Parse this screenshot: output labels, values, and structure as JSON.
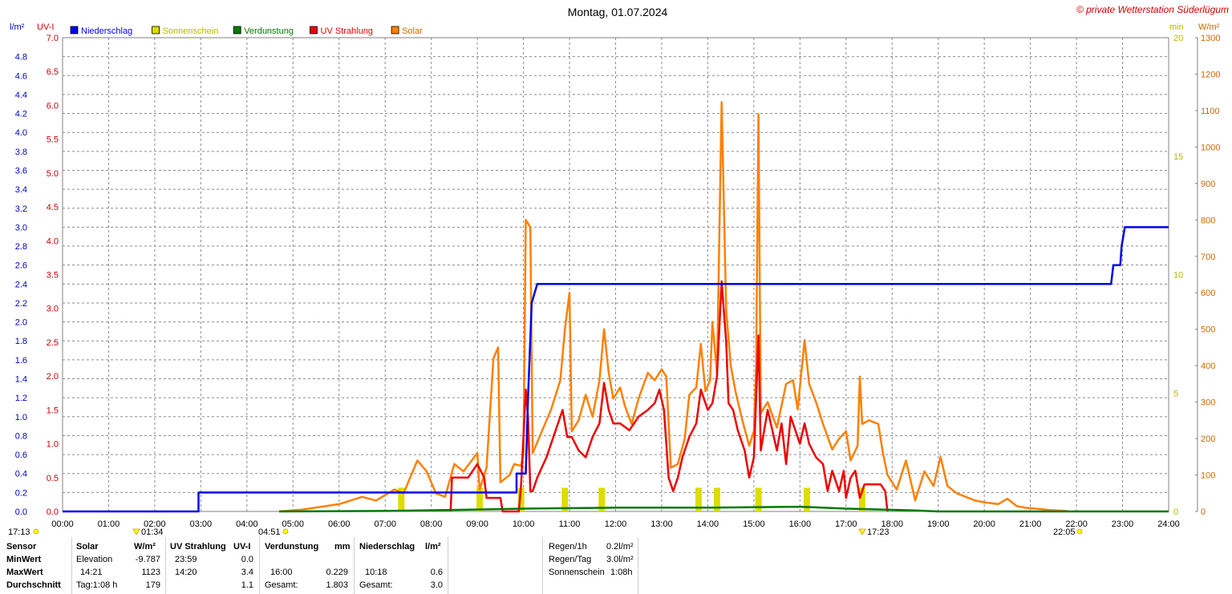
{
  "header": {
    "title": "Montag, 01.07.2024",
    "copyright": "© private Wetterstation Süderlügum",
    "unit_rain": "l/m²",
    "unit_uv": "UV-I",
    "unit_min": "min",
    "unit_wm2": "W/m²"
  },
  "legend": [
    {
      "name": "Niederschlag",
      "color": "#0000ee"
    },
    {
      "name": "Sonnenschein",
      "color": "#dddd00"
    },
    {
      "name": "Verdunstung",
      "color": "#007a00"
    },
    {
      "name": "UV Strahlung",
      "color": "#ee0000"
    },
    {
      "name": "Solar",
      "color": "#ff8000"
    }
  ],
  "chart_data": {
    "type": "line",
    "title": "Montag, 01.07.2024",
    "x_ticks": [
      "00:00",
      "01:00",
      "02:00",
      "03:00",
      "04:00",
      "05:00",
      "06:00",
      "07:00",
      "08:00",
      "09:00",
      "10:00",
      "11:00",
      "12:00",
      "13:00",
      "14:00",
      "15:00",
      "16:00",
      "17:00",
      "18:00",
      "19:00",
      "20:00",
      "21:00",
      "22:00",
      "23:00",
      "24:00"
    ],
    "xlim_hours": [
      0,
      24
    ],
    "axes": {
      "rain": {
        "unit": "l/m²",
        "range": [
          0,
          5.0
        ],
        "ticks": [
          "0.0",
          "0.2",
          "0.4",
          "0.6",
          "0.8",
          "1.0",
          "1.2",
          "1.4",
          "1.6",
          "1.8",
          "2.0",
          "2.2",
          "2.4",
          "2.6",
          "2.8",
          "3.0",
          "3.2",
          "3.4",
          "3.6",
          "3.8",
          "4.0",
          "4.2",
          "4.4",
          "4.6",
          "4.8"
        ]
      },
      "uv": {
        "unit": "UV-I",
        "range": [
          0,
          7.0
        ],
        "ticks": [
          "0.0",
          "0.5",
          "1.0",
          "1.5",
          "2.0",
          "2.5",
          "3.0",
          "3.5",
          "4.0",
          "4.5",
          "5.0",
          "5.5",
          "6.0",
          "6.5",
          "7.0"
        ]
      },
      "sunshine": {
        "unit": "min",
        "range": [
          0,
          20
        ],
        "ticks": [
          "0",
          "5",
          "10",
          "15",
          "20"
        ]
      },
      "solar": {
        "unit": "W/m²",
        "range": [
          0,
          1300
        ],
        "ticks": [
          "0",
          "100",
          "200",
          "300",
          "400",
          "500",
          "600",
          "700",
          "800",
          "900",
          "1000",
          "1100",
          "1200",
          "1300"
        ]
      }
    },
    "grid": true,
    "series": [
      {
        "name": "Niederschlag",
        "axis": "rain",
        "step": true,
        "points": [
          [
            0,
            0
          ],
          [
            2.95,
            0
          ],
          [
            2.95,
            0.2
          ],
          [
            9.85,
            0.2
          ],
          [
            9.85,
            0.4
          ],
          [
            10.05,
            0.4
          ],
          [
            10.1,
            1.2
          ],
          [
            10.18,
            2.2
          ],
          [
            10.3,
            2.4
          ],
          [
            22.75,
            2.4
          ],
          [
            22.8,
            2.6
          ],
          [
            22.95,
            2.6
          ],
          [
            22.98,
            2.8
          ],
          [
            23.05,
            3.0
          ],
          [
            24,
            3.0
          ]
        ]
      },
      {
        "name": "Solar",
        "axis": "solar",
        "points": [
          [
            4.7,
            0
          ],
          [
            5.2,
            5
          ],
          [
            6.0,
            20
          ],
          [
            6.5,
            40
          ],
          [
            6.8,
            30
          ],
          [
            7.2,
            60
          ],
          [
            7.4,
            50
          ],
          [
            7.7,
            140
          ],
          [
            7.9,
            110
          ],
          [
            8.1,
            50
          ],
          [
            8.3,
            40
          ],
          [
            8.5,
            130
          ],
          [
            8.7,
            110
          ],
          [
            9.0,
            160
          ],
          [
            9.05,
            60
          ],
          [
            9.2,
            120
          ],
          [
            9.35,
            420
          ],
          [
            9.45,
            450
          ],
          [
            9.5,
            80
          ],
          [
            9.7,
            100
          ],
          [
            9.8,
            130
          ],
          [
            9.95,
            125
          ],
          [
            10.0,
            160
          ],
          [
            10.05,
            800
          ],
          [
            10.15,
            780
          ],
          [
            10.2,
            160
          ],
          [
            10.4,
            220
          ],
          [
            10.6,
            280
          ],
          [
            10.8,
            360
          ],
          [
            10.9,
            500
          ],
          [
            11.0,
            600
          ],
          [
            11.05,
            220
          ],
          [
            11.2,
            250
          ],
          [
            11.35,
            320
          ],
          [
            11.5,
            260
          ],
          [
            11.65,
            360
          ],
          [
            11.75,
            500
          ],
          [
            11.85,
            380
          ],
          [
            11.95,
            310
          ],
          [
            12.1,
            340
          ],
          [
            12.2,
            290
          ],
          [
            12.35,
            240
          ],
          [
            12.5,
            310
          ],
          [
            12.7,
            380
          ],
          [
            12.85,
            360
          ],
          [
            13.0,
            390
          ],
          [
            13.1,
            370
          ],
          [
            13.2,
            120
          ],
          [
            13.35,
            130
          ],
          [
            13.5,
            200
          ],
          [
            13.6,
            320
          ],
          [
            13.75,
            340
          ],
          [
            13.85,
            460
          ],
          [
            13.95,
            330
          ],
          [
            14.05,
            360
          ],
          [
            14.1,
            520
          ],
          [
            14.2,
            380
          ],
          [
            14.3,
            1123
          ],
          [
            14.4,
            550
          ],
          [
            14.5,
            400
          ],
          [
            14.6,
            330
          ],
          [
            14.75,
            250
          ],
          [
            14.9,
            180
          ],
          [
            15.0,
            220
          ],
          [
            15.05,
            400
          ],
          [
            15.1,
            1090
          ],
          [
            15.15,
            270
          ],
          [
            15.3,
            300
          ],
          [
            15.5,
            230
          ],
          [
            15.7,
            350
          ],
          [
            15.85,
            360
          ],
          [
            15.95,
            280
          ],
          [
            16.1,
            470
          ],
          [
            16.2,
            350
          ],
          [
            16.35,
            300
          ],
          [
            16.5,
            240
          ],
          [
            16.7,
            170
          ],
          [
            16.85,
            200
          ],
          [
            17.0,
            220
          ],
          [
            17.1,
            140
          ],
          [
            17.25,
            180
          ],
          [
            17.3,
            370
          ],
          [
            17.35,
            240
          ],
          [
            17.5,
            250
          ],
          [
            17.7,
            240
          ],
          [
            17.8,
            160
          ],
          [
            17.9,
            100
          ],
          [
            18.1,
            60
          ],
          [
            18.3,
            140
          ],
          [
            18.5,
            30
          ],
          [
            18.7,
            110
          ],
          [
            18.9,
            70
          ],
          [
            19.05,
            150
          ],
          [
            19.2,
            70
          ],
          [
            19.4,
            50
          ],
          [
            19.6,
            40
          ],
          [
            19.8,
            30
          ],
          [
            20.0,
            25
          ],
          [
            20.3,
            20
          ],
          [
            20.5,
            35
          ],
          [
            20.7,
            15
          ],
          [
            20.9,
            10
          ],
          [
            21.1,
            8
          ],
          [
            21.4,
            4
          ],
          [
            21.8,
            1
          ]
        ]
      },
      {
        "name": "UV Strahlung",
        "axis": "uv",
        "points": [
          [
            8.42,
            0
          ],
          [
            8.45,
            0.5
          ],
          [
            8.8,
            0.5
          ],
          [
            8.9,
            0.6
          ],
          [
            9.0,
            0.7
          ],
          [
            9.15,
            0.5
          ],
          [
            9.2,
            0.2
          ],
          [
            9.5,
            0.2
          ],
          [
            9.55,
            0
          ],
          [
            9.9,
            0
          ],
          [
            9.95,
            0.4
          ],
          [
            10.05,
            1.8
          ],
          [
            10.1,
            1.4
          ],
          [
            10.15,
            0.3
          ],
          [
            10.2,
            0.3
          ],
          [
            10.3,
            0.5
          ],
          [
            10.5,
            0.8
          ],
          [
            10.7,
            1.2
          ],
          [
            10.85,
            1.5
          ],
          [
            10.95,
            1.1
          ],
          [
            11.05,
            1.1
          ],
          [
            11.2,
            0.9
          ],
          [
            11.35,
            0.8
          ],
          [
            11.5,
            1.1
          ],
          [
            11.65,
            1.3
          ],
          [
            11.75,
            1.9
          ],
          [
            11.85,
            1.5
          ],
          [
            11.95,
            1.3
          ],
          [
            12.1,
            1.3
          ],
          [
            12.3,
            1.2
          ],
          [
            12.5,
            1.4
          ],
          [
            12.7,
            1.5
          ],
          [
            12.85,
            1.6
          ],
          [
            12.95,
            1.8
          ],
          [
            13.05,
            1.5
          ],
          [
            13.15,
            0.5
          ],
          [
            13.25,
            0.3
          ],
          [
            13.35,
            0.5
          ],
          [
            13.45,
            0.8
          ],
          [
            13.6,
            1.1
          ],
          [
            13.75,
            1.3
          ],
          [
            13.85,
            1.8
          ],
          [
            14.0,
            1.5
          ],
          [
            14.1,
            1.6
          ],
          [
            14.2,
            2.0
          ],
          [
            14.3,
            3.4
          ],
          [
            14.4,
            2.5
          ],
          [
            14.45,
            1.6
          ],
          [
            14.55,
            1.5
          ],
          [
            14.65,
            1.2
          ],
          [
            14.8,
            0.9
          ],
          [
            14.9,
            0.5
          ],
          [
            15.0,
            0.8
          ],
          [
            15.1,
            2.6
          ],
          [
            15.15,
            0.9
          ],
          [
            15.3,
            1.5
          ],
          [
            15.4,
            1.2
          ],
          [
            15.5,
            0.9
          ],
          [
            15.6,
            1.3
          ],
          [
            15.7,
            0.7
          ],
          [
            15.8,
            1.4
          ],
          [
            15.9,
            1.2
          ],
          [
            16.0,
            1.0
          ],
          [
            16.1,
            1.3
          ],
          [
            16.2,
            1.0
          ],
          [
            16.35,
            0.8
          ],
          [
            16.5,
            0.7
          ],
          [
            16.6,
            0.3
          ],
          [
            16.7,
            0.6
          ],
          [
            16.85,
            0.3
          ],
          [
            16.95,
            0.6
          ],
          [
            17.0,
            0.2
          ],
          [
            17.1,
            0.5
          ],
          [
            17.2,
            0.6
          ],
          [
            17.3,
            0.2
          ],
          [
            17.4,
            0.4
          ],
          [
            17.5,
            0.4
          ],
          [
            17.6,
            0.4
          ],
          [
            17.75,
            0.4
          ],
          [
            17.85,
            0.3
          ],
          [
            17.9,
            0
          ]
        ]
      },
      {
        "name": "Verdunstung",
        "axis": "rain",
        "points": [
          [
            4.7,
            0
          ],
          [
            7.0,
            0.005
          ],
          [
            9.0,
            0.02
          ],
          [
            10.0,
            0.03
          ],
          [
            12.0,
            0.04
          ],
          [
            14.0,
            0.04
          ],
          [
            16.0,
            0.05
          ],
          [
            17.0,
            0.03
          ],
          [
            18.5,
            0.01
          ],
          [
            19.0,
            0.0
          ],
          [
            24,
            0.0
          ]
        ]
      },
      {
        "name": "Sonnenschein",
        "axis": "sunshine",
        "bars": true,
        "points": [
          [
            7.35,
            1
          ],
          [
            9.05,
            1
          ],
          [
            9.95,
            1
          ],
          [
            10.9,
            1
          ],
          [
            11.7,
            1
          ],
          [
            13.8,
            1
          ],
          [
            14.2,
            1
          ],
          [
            15.1,
            1
          ],
          [
            16.15,
            1
          ],
          [
            17.35,
            1
          ]
        ]
      }
    ],
    "sun_markers": {
      "left_label": "17:13",
      "rise_marker": "01:34",
      "sunrise": "04:51",
      "noon": "17:23",
      "sunset": "22:05"
    }
  },
  "stats": {
    "headers": {
      "sensor": "Sensor",
      "solar": "Solar",
      "solar_unit": "W/m²",
      "uv": "UV Strahlung",
      "uv_unit": "UV-I",
      "evap": "Verdunstung",
      "evap_unit": "mm",
      "rain": "Niederschlag",
      "rain_unit": "l/m²"
    },
    "rows": [
      {
        "label": "MinWert",
        "solar_time": "Elevation",
        "solar_val": "-9.787",
        "uv_time": "23:59",
        "uv_val": "0.0",
        "evap_time": "",
        "evap_val": "",
        "rain_time": "",
        "rain_val": ""
      },
      {
        "label": "MaxWert",
        "solar_time": "14:21",
        "solar_val": "1123",
        "uv_time": "14:20",
        "uv_val": "3.4",
        "evap_time": "16:00",
        "evap_val": "0.229",
        "rain_time": "10:18",
        "rain_val": "0.6"
      },
      {
        "label": "Durchschnitt",
        "solar_time": "Tag:1:08 h",
        "solar_val": "179",
        "uv_time": "",
        "uv_val": "1.1",
        "evap_time": "Gesamt:",
        "evap_val": "1.803",
        "rain_time": "Gesamt:",
        "rain_val": "3.0"
      }
    ],
    "extra": [
      {
        "label": "Regen/1h",
        "value": "0.2l/m²"
      },
      {
        "label": "Regen/Tag",
        "value": "3.0l/m²"
      },
      {
        "label": "Sonnenschein",
        "value": "1:08h"
      }
    ]
  }
}
